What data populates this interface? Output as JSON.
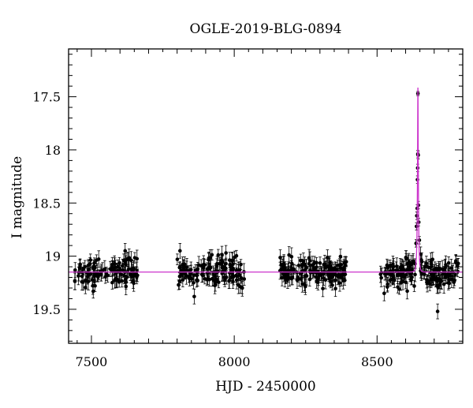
{
  "chart_data": {
    "type": "scatter",
    "title": "OGLE-2019-BLG-0894",
    "xlabel": "HJD - 2450000",
    "ylabel": "I magnitude",
    "xlim": [
      7420,
      8800
    ],
    "ylim": [
      19.82,
      17.05
    ],
    "y_inverted": true,
    "grid": false,
    "legend": "none",
    "x_ticks": [
      7500,
      8000,
      8500
    ],
    "y_ticks": [
      17.5,
      18,
      18.5,
      19,
      19.5
    ],
    "x_tick_labels": [
      "7500",
      "8000",
      "8500"
    ],
    "y_tick_labels": [
      "17.5",
      "18",
      "18.5",
      "19",
      "19.5"
    ],
    "colors": {
      "points": "#000000",
      "model": "#cc33cc",
      "axes": "#000000"
    },
    "model": {
      "name": "",
      "baseline": 19.15,
      "peak_time": 8643,
      "peak_mag": 17.42,
      "timescale": 3.6,
      "note_shape": "point-lens curve"
    },
    "seasons": [
      {
        "start": 7440,
        "end": 7665,
        "count": 110,
        "scatter": 0.085
      },
      {
        "start": 7800,
        "end": 8035,
        "count": 130,
        "scatter": 0.085
      },
      {
        "start": 8160,
        "end": 8395,
        "count": 150,
        "scatter": 0.075
      },
      {
        "start": 8510,
        "end": 8790,
        "count": 170,
        "scatter": 0.085
      }
    ],
    "event_points": [
      {
        "x": 8640.5,
        "y": 18.55
      },
      {
        "x": 8641.5,
        "y": 18.28
      },
      {
        "x": 8642.2,
        "y": 18.17
      },
      {
        "x": 8642.8,
        "y": 18.04
      },
      {
        "x": 8643.0,
        "y": 17.47
      },
      {
        "x": 8644.0,
        "y": 18.05
      },
      {
        "x": 8644.8,
        "y": 18.52
      },
      {
        "x": 8646.0,
        "y": 18.68
      },
      {
        "x": 8639.0,
        "y": 18.62
      },
      {
        "x": 8638.0,
        "y": 18.72
      },
      {
        "x": 8648.0,
        "y": 18.85
      },
      {
        "x": 8636.5,
        "y": 18.88
      }
    ],
    "outliers": [
      {
        "x": 7618,
        "y": 18.95
      },
      {
        "x": 7810,
        "y": 18.95
      },
      {
        "x": 7971,
        "y": 18.97
      },
      {
        "x": 8712,
        "y": 19.52
      },
      {
        "x": 8525,
        "y": 19.35
      },
      {
        "x": 7860,
        "y": 19.38
      }
    ]
  }
}
